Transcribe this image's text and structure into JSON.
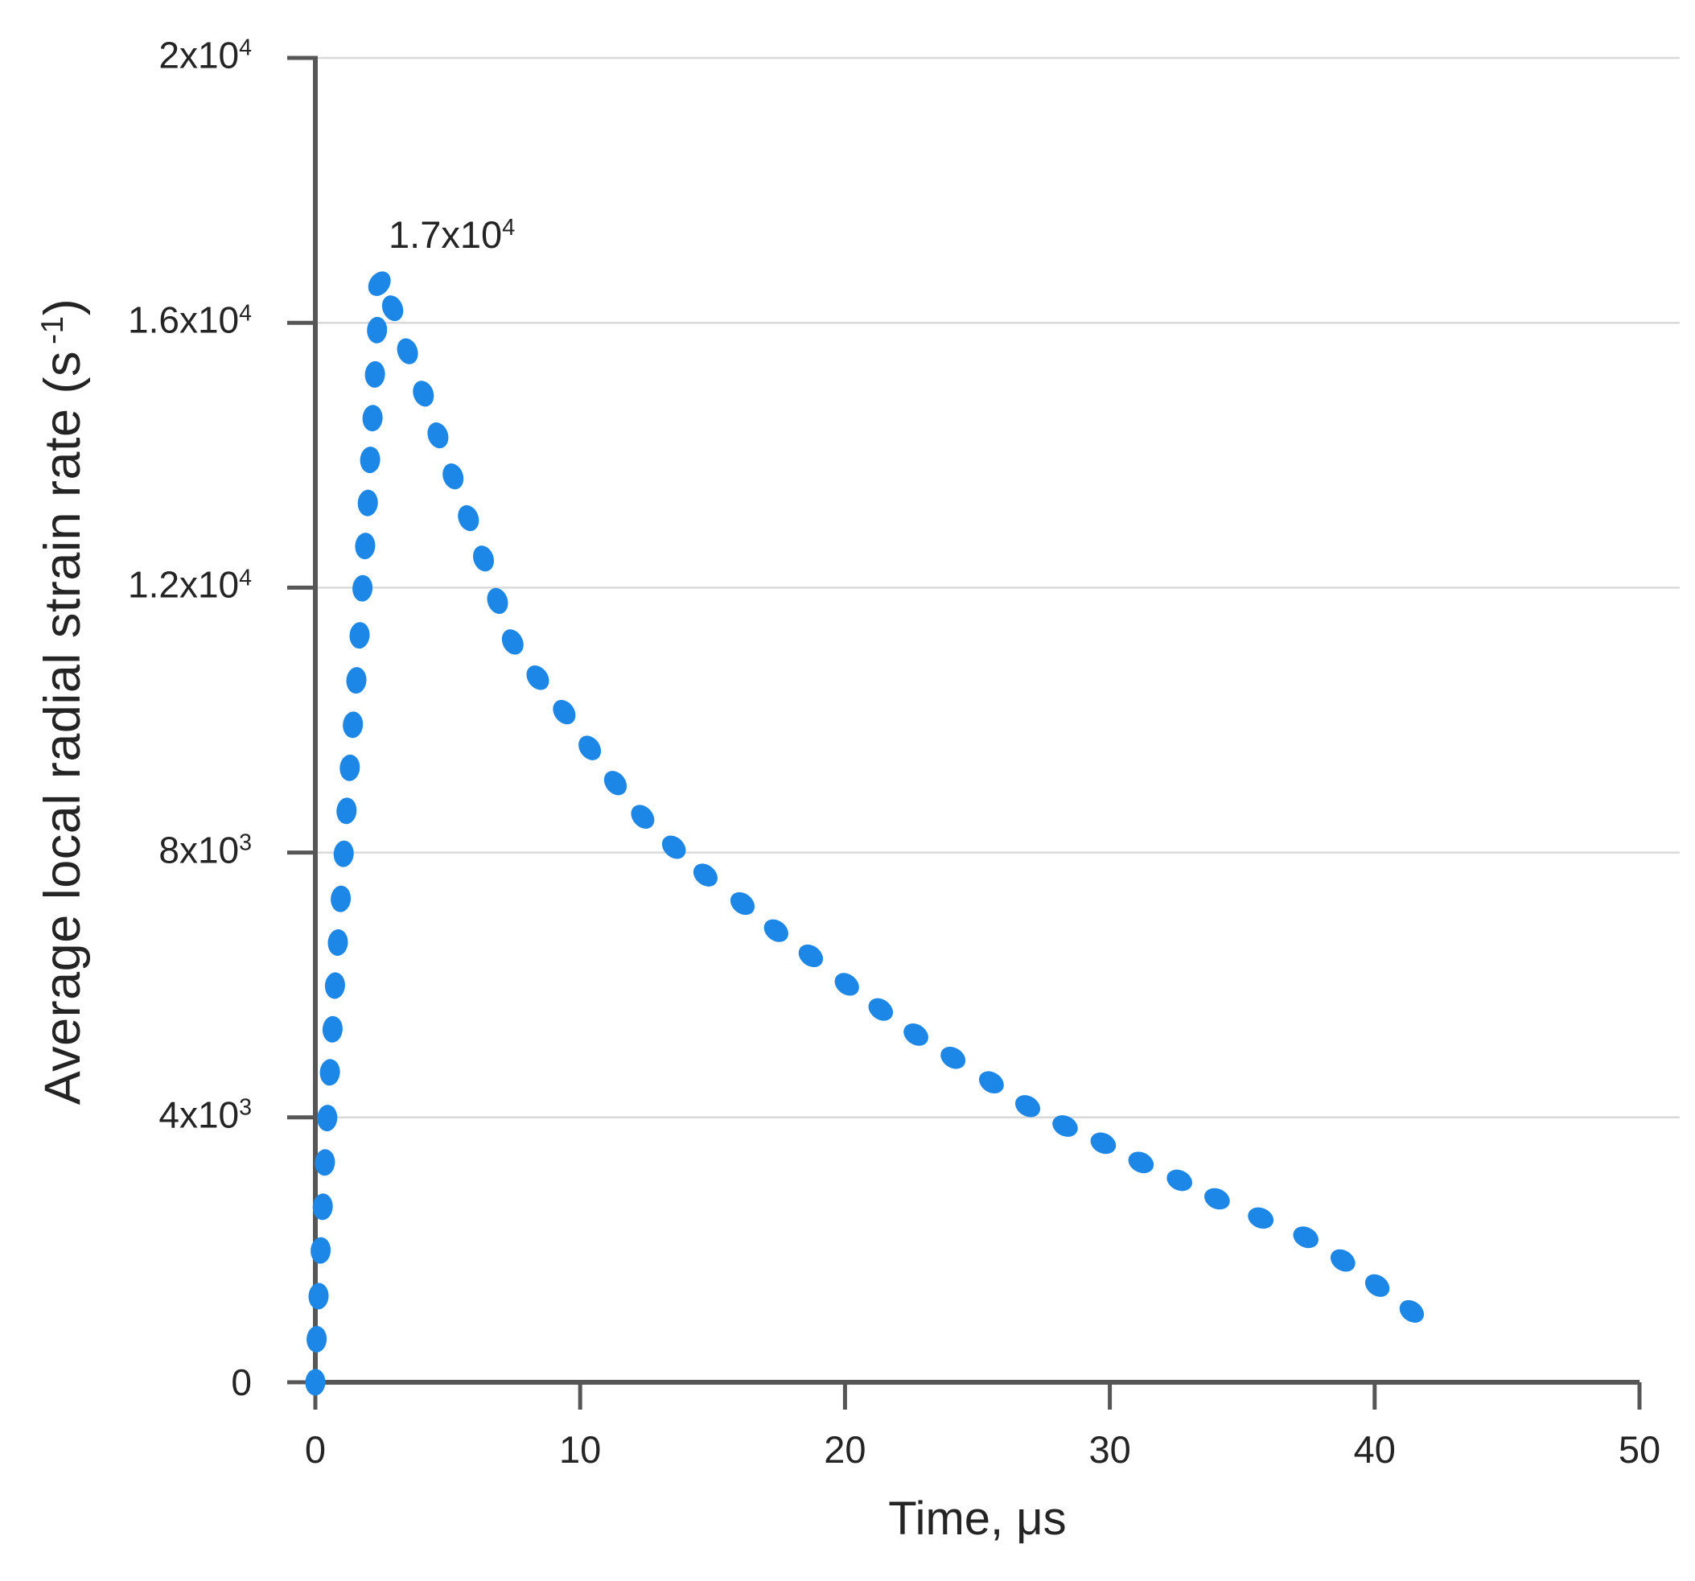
{
  "chart_data": {
    "type": "scatter",
    "title": "",
    "xlabel": "Time, μs",
    "ylabel": "Average local radial strain rate (s⁻¹)",
    "ylabel_parts": {
      "pre": "Average local radial strain rate (s",
      "sup": "-1",
      "post": ")"
    },
    "xlim": [
      0,
      50
    ],
    "ylim": [
      0,
      20000
    ],
    "grid": "horizontal-only",
    "legend": "none",
    "annotation": {
      "main": "1.7x10",
      "sup": "4",
      "anchor_t": 2.4,
      "anchor_v": 16600
    },
    "x_axis": {
      "ticks": [
        {
          "value": 0,
          "label": "0"
        },
        {
          "value": 10,
          "label": "10"
        },
        {
          "value": 20,
          "label": "20"
        },
        {
          "value": 30,
          "label": "30"
        },
        {
          "value": 40,
          "label": "40"
        },
        {
          "value": 50,
          "label": "50"
        }
      ]
    },
    "y_axis": {
      "ticks": [
        {
          "value": 0,
          "main": "0",
          "sup": ""
        },
        {
          "value": 4000,
          "main": "4x10",
          "sup": "3"
        },
        {
          "value": 8000,
          "main": "8x10",
          "sup": "3"
        },
        {
          "value": 12000,
          "main": "1.2x10",
          "sup": "4"
        },
        {
          "value": 16000,
          "main": "1.6x10",
          "sup": "4"
        },
        {
          "value": 20000,
          "main": "2x10",
          "sup": "4"
        }
      ]
    },
    "colors": {
      "dot": "#1d87e8",
      "axis": "#565656",
      "grid": "#d9d9d9",
      "text": "#242424"
    },
    "series": [
      {
        "name": "average local radial strain rate",
        "marker": "oval-dot",
        "points": [
          [
            0.0,
            0
          ],
          [
            0.05,
            650
          ],
          [
            0.12,
            1300
          ],
          [
            0.2,
            1990
          ],
          [
            0.28,
            2650
          ],
          [
            0.36,
            3320
          ],
          [
            0.45,
            3990
          ],
          [
            0.55,
            4680
          ],
          [
            0.65,
            5330
          ],
          [
            0.74,
            5990
          ],
          [
            0.85,
            6640
          ],
          [
            0.96,
            7300
          ],
          [
            1.07,
            7980
          ],
          [
            1.18,
            8630
          ],
          [
            1.3,
            9280
          ],
          [
            1.42,
            9930
          ],
          [
            1.55,
            10600
          ],
          [
            1.67,
            11280
          ],
          [
            1.78,
            11990
          ],
          [
            1.88,
            12630
          ],
          [
            1.98,
            13280
          ],
          [
            2.07,
            13930
          ],
          [
            2.16,
            14560
          ],
          [
            2.25,
            15220
          ],
          [
            2.33,
            15890
          ],
          [
            2.42,
            16590
          ],
          [
            2.92,
            16220
          ],
          [
            3.48,
            15570
          ],
          [
            4.08,
            14930
          ],
          [
            4.63,
            14300
          ],
          [
            5.2,
            13680
          ],
          [
            5.78,
            13050
          ],
          [
            6.35,
            12440
          ],
          [
            6.88,
            11800
          ],
          [
            7.45,
            11180
          ],
          [
            8.4,
            10640
          ],
          [
            9.4,
            10120
          ],
          [
            10.36,
            9580
          ],
          [
            11.33,
            9050
          ],
          [
            12.36,
            8540
          ],
          [
            13.54,
            8080
          ],
          [
            14.73,
            7660
          ],
          [
            16.13,
            7230
          ],
          [
            17.4,
            6820
          ],
          [
            18.71,
            6440
          ],
          [
            20.07,
            6010
          ],
          [
            21.35,
            5630
          ],
          [
            22.68,
            5250
          ],
          [
            24.08,
            4900
          ],
          [
            25.53,
            4530
          ],
          [
            26.9,
            4170
          ],
          [
            28.31,
            3870
          ],
          [
            29.75,
            3610
          ],
          [
            31.18,
            3320
          ],
          [
            32.63,
            3050
          ],
          [
            34.05,
            2770
          ],
          [
            35.7,
            2480
          ],
          [
            37.4,
            2190
          ],
          [
            38.8,
            1840
          ],
          [
            40.1,
            1460
          ],
          [
            41.4,
            1070
          ]
        ]
      }
    ]
  }
}
